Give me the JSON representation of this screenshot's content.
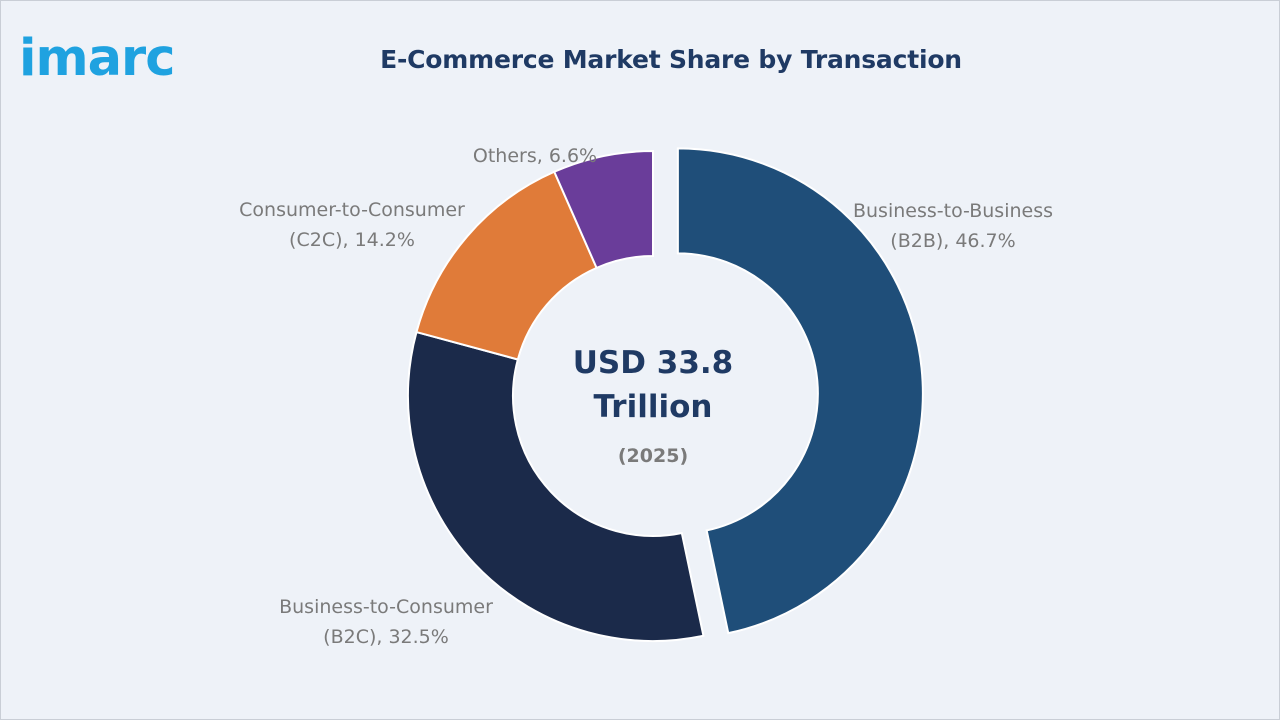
{
  "brand": {
    "logo_text": "imarc",
    "logo_color": "#1fa2e0"
  },
  "chart_data": {
    "type": "pie",
    "style": "donut",
    "title": "E-Commerce Market Share by Transaction",
    "categories": [
      "Business-to-Business (B2B)",
      "Business-to-Consumer (B2C)",
      "Consumer-to-Consumer (C2C)",
      "Others"
    ],
    "values": [
      46.7,
      32.5,
      14.2,
      6.6
    ],
    "unit": "%",
    "colors": [
      "#1f4e79",
      "#1b2a4a",
      "#e07b39",
      "#6a3d9a"
    ],
    "exploded": "Business-to-Business (B2B)",
    "labels": [
      {
        "lines": [
          "Business-to-Business",
          "(B2B), 46.7%"
        ]
      },
      {
        "lines": [
          "Business-to-Consumer",
          "(B2C), 32.5%"
        ]
      },
      {
        "lines": [
          "Consumer-to-Consumer",
          "(C2C), 14.2%"
        ]
      },
      {
        "lines": [
          "Others, 6.6%"
        ]
      }
    ],
    "center_total": [
      "USD 33.8",
      "Trillion"
    ],
    "center_year": "(2025)",
    "legend": "none"
  }
}
